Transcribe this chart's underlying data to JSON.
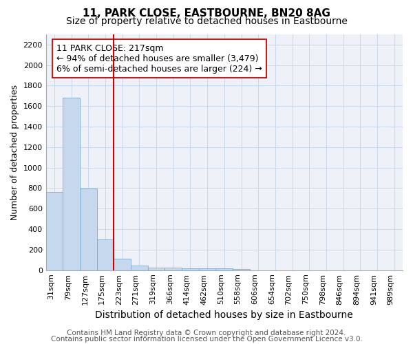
{
  "title": "11, PARK CLOSE, EASTBOURNE, BN20 8AG",
  "subtitle": "Size of property relative to detached houses in Eastbourne",
  "xlabel": "Distribution of detached houses by size in Eastbourne",
  "ylabel": "Number of detached properties",
  "categories": [
    "31sqm",
    "79sqm",
    "127sqm",
    "175sqm",
    "223sqm",
    "271sqm",
    "319sqm",
    "366sqm",
    "414sqm",
    "462sqm",
    "510sqm",
    "558sqm",
    "606sqm",
    "654sqm",
    "702sqm",
    "750sqm",
    "798sqm",
    "846sqm",
    "894sqm",
    "941sqm",
    "989sqm"
  ],
  "values": [
    760,
    1680,
    795,
    300,
    115,
    42,
    28,
    22,
    18,
    15,
    20,
    12,
    0,
    0,
    0,
    0,
    0,
    0,
    0,
    0,
    0
  ],
  "bar_color": "#c5d8ee",
  "bar_edge_color": "#7aaed4",
  "grid_color": "#c8d8eb",
  "background_color": "#eef2f8",
  "vline_x_index": 3.5,
  "vline_color": "#cc0000",
  "annotation_line1": "11 PARK CLOSE: 217sqm",
  "annotation_line2": "← 94% of detached houses are smaller (3,479)",
  "annotation_line3": "6% of semi-detached houses are larger (224) →",
  "annotation_box_color": "#ffffff",
  "annotation_box_edge": "#cc0000",
  "ylim": [
    0,
    2300
  ],
  "yticks": [
    0,
    200,
    400,
    600,
    800,
    1000,
    1200,
    1400,
    1600,
    1800,
    2000,
    2200
  ],
  "footer1": "Contains HM Land Registry data © Crown copyright and database right 2024.",
  "footer2": "Contains public sector information licensed under the Open Government Licence v3.0.",
  "title_fontsize": 11,
  "subtitle_fontsize": 10,
  "xlabel_fontsize": 10,
  "ylabel_fontsize": 9,
  "tick_fontsize": 8,
  "annotation_fontsize": 9,
  "footer_fontsize": 7.5
}
